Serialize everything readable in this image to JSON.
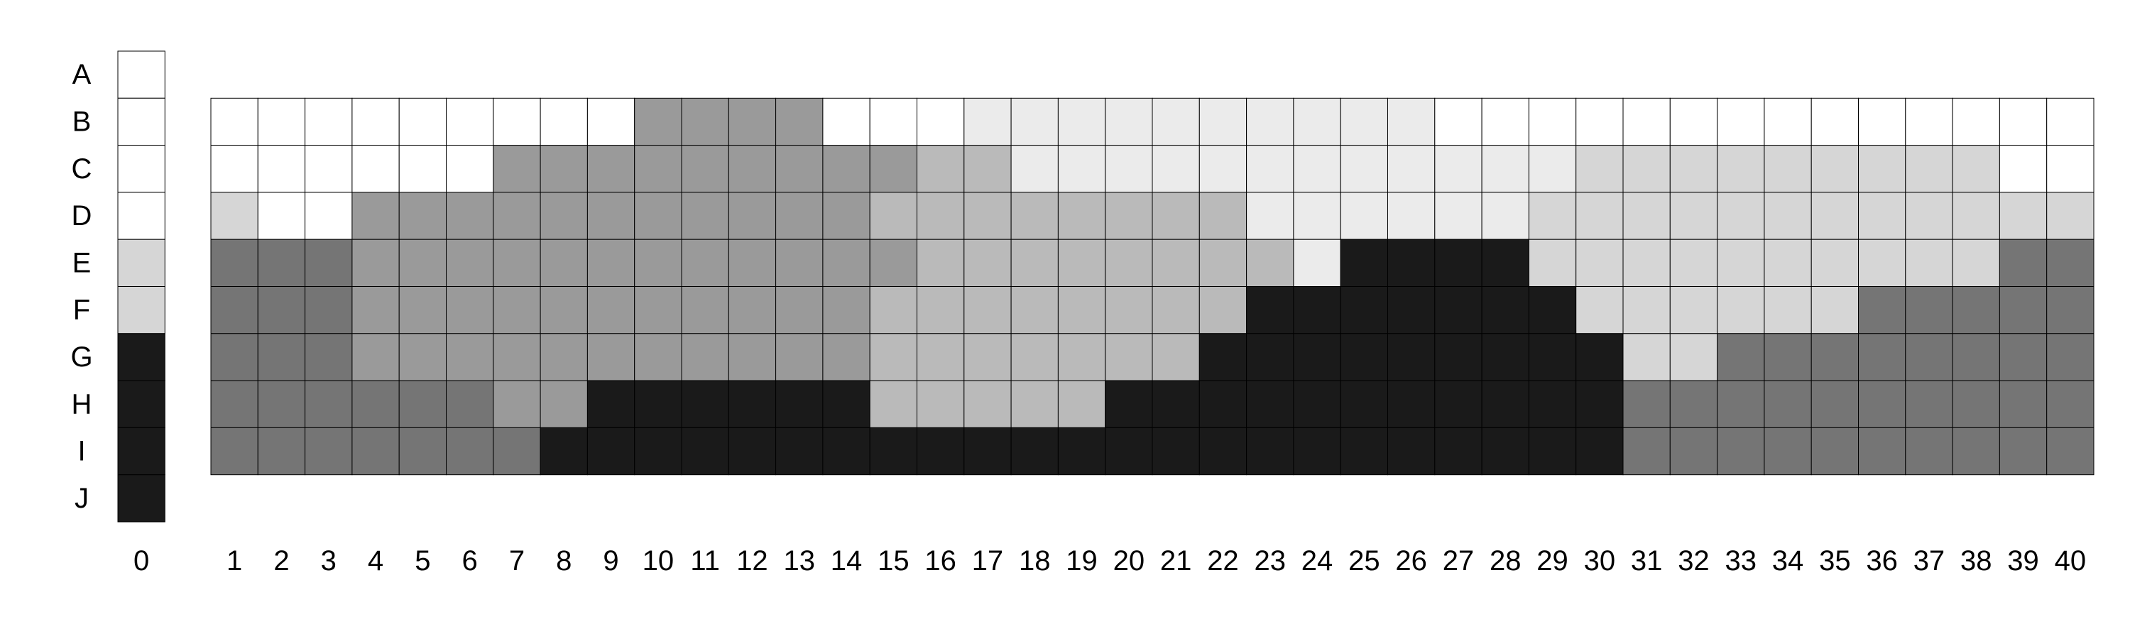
{
  "chart_data": {
    "type": "heatmap",
    "rows": [
      "A",
      "B",
      "C",
      "D",
      "E",
      "F",
      "G",
      "H",
      "I",
      "J"
    ],
    "columns": [
      "0",
      "1",
      "2",
      "3",
      "4",
      "5",
      "6",
      "7",
      "8",
      "9",
      "10",
      "11",
      "12",
      "13",
      "14",
      "15",
      "16",
      "17",
      "18",
      "19",
      "20",
      "21",
      "22",
      "23",
      "24",
      "25",
      "26",
      "27",
      "28",
      "29",
      "30",
      "31",
      "32",
      "33",
      "34",
      "35",
      "36",
      "37",
      "38",
      "39",
      "40"
    ],
    "reference_column": {
      "column": "0",
      "values": [
        0,
        0,
        0,
        0,
        2,
        2,
        6,
        6,
        6,
        6
      ]
    },
    "grid_rows": [
      "B",
      "C",
      "D",
      "E",
      "F",
      "G",
      "H",
      "I"
    ],
    "grid_values": [
      [
        0,
        0,
        0,
        0,
        0,
        0,
        0,
        0,
        0,
        4,
        4,
        4,
        4,
        0,
        0,
        0,
        1,
        1,
        1,
        1,
        1,
        1,
        1,
        1,
        1,
        1,
        0,
        0,
        0,
        0,
        0,
        0,
        0,
        0,
        0,
        0,
        0,
        0,
        0,
        0
      ],
      [
        0,
        0,
        0,
        0,
        0,
        0,
        4,
        4,
        4,
        4,
        4,
        4,
        4,
        4,
        4,
        3,
        3,
        1,
        1,
        1,
        1,
        1,
        1,
        1,
        1,
        1,
        1,
        1,
        1,
        2,
        2,
        2,
        2,
        2,
        2,
        2,
        2,
        2,
        0,
        0
      ],
      [
        2,
        0,
        0,
        4,
        4,
        4,
        4,
        4,
        4,
        4,
        4,
        4,
        4,
        4,
        3,
        3,
        3,
        3,
        3,
        3,
        3,
        3,
        1,
        1,
        1,
        1,
        1,
        1,
        2,
        2,
        2,
        2,
        2,
        2,
        2,
        2,
        2,
        2,
        2,
        2
      ],
      [
        5,
        5,
        5,
        4,
        4,
        4,
        4,
        4,
        4,
        4,
        4,
        4,
        4,
        4,
        4,
        3,
        3,
        3,
        3,
        3,
        3,
        3,
        3,
        1,
        6,
        6,
        6,
        6,
        2,
        2,
        2,
        2,
        2,
        2,
        2,
        2,
        2,
        2,
        5,
        5
      ],
      [
        5,
        5,
        5,
        4,
        4,
        4,
        4,
        4,
        4,
        4,
        4,
        4,
        4,
        4,
        3,
        3,
        3,
        3,
        3,
        3,
        3,
        3,
        6,
        6,
        6,
        6,
        6,
        6,
        6,
        2,
        2,
        2,
        2,
        2,
        2,
        5,
        5,
        5,
        5,
        5
      ],
      [
        5,
        5,
        5,
        4,
        4,
        4,
        4,
        4,
        4,
        4,
        4,
        4,
        4,
        4,
        3,
        3,
        3,
        3,
        3,
        3,
        3,
        6,
        6,
        6,
        6,
        6,
        6,
        6,
        6,
        6,
        2,
        2,
        5,
        5,
        5,
        5,
        5,
        5,
        5,
        5
      ],
      [
        5,
        5,
        5,
        5,
        5,
        5,
        4,
        4,
        6,
        6,
        6,
        6,
        6,
        6,
        3,
        3,
        3,
        3,
        3,
        6,
        6,
        6,
        6,
        6,
        6,
        6,
        6,
        6,
        6,
        6,
        5,
        5,
        5,
        5,
        5,
        5,
        5,
        5,
        5,
        5
      ],
      [
        5,
        5,
        5,
        5,
        5,
        5,
        5,
        6,
        6,
        6,
        6,
        6,
        6,
        6,
        6,
        6,
        6,
        6,
        6,
        6,
        6,
        6,
        6,
        6,
        6,
        6,
        6,
        6,
        6,
        6,
        5,
        5,
        5,
        5,
        5,
        5,
        5,
        5,
        5,
        5
      ]
    ],
    "color_levels": [
      "#ffffff",
      "#ebebeb",
      "#d6d6d6",
      "#bababa",
      "#9a9a9a",
      "#757575",
      "#1a1a1a"
    ],
    "grid": true,
    "legend": "none"
  }
}
